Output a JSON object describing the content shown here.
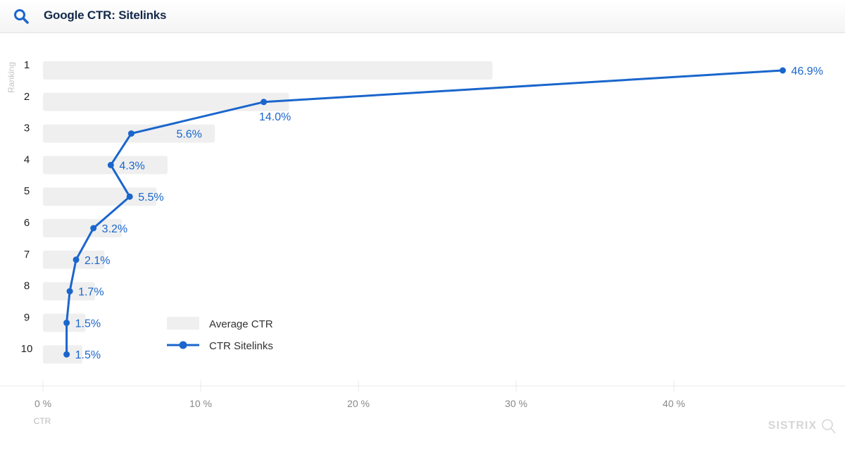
{
  "header": {
    "title": "Google CTR: Sitelinks",
    "icon": "search-icon"
  },
  "colors": {
    "accent": "#1a66cc",
    "bar": "#efefef",
    "title": "#13294b",
    "axis_text": "#888888",
    "rank_text": "#222222"
  },
  "legend": {
    "items": [
      {
        "label": "Average CTR",
        "type": "bar"
      },
      {
        "label": "CTR Sitelinks",
        "type": "line"
      }
    ]
  },
  "watermark": "SISTRIX",
  "chart_data": {
    "type": "bar",
    "title": "Google CTR: Sitelinks",
    "orientation": "horizontal",
    "xlabel": "CTR",
    "ylabel": "Ranking",
    "categories": [
      "1",
      "2",
      "3",
      "4",
      "5",
      "6",
      "7",
      "8",
      "9",
      "10"
    ],
    "xlim": [
      0,
      50
    ],
    "xticks": [
      "0 %",
      "10 %",
      "20 %",
      "30 %",
      "40 %"
    ],
    "series": [
      {
        "name": "Average CTR",
        "type": "bar",
        "values": [
          28.5,
          15.6,
          10.9,
          7.9,
          7.2,
          5.0,
          3.9,
          3.3,
          2.7,
          2.5
        ]
      },
      {
        "name": "CTR Sitelinks",
        "type": "line",
        "values": [
          46.9,
          14.0,
          5.6,
          4.3,
          5.5,
          3.2,
          2.1,
          1.7,
          1.5,
          1.5
        ],
        "labels": [
          "46.9%",
          "14.0%",
          "5.6%",
          "4.3%",
          "5.5%",
          "3.2%",
          "2.1%",
          "1.7%",
          "1.5%",
          "1.5%"
        ]
      }
    ],
    "legend_position": "inside-bottom-left",
    "grid": false
  }
}
